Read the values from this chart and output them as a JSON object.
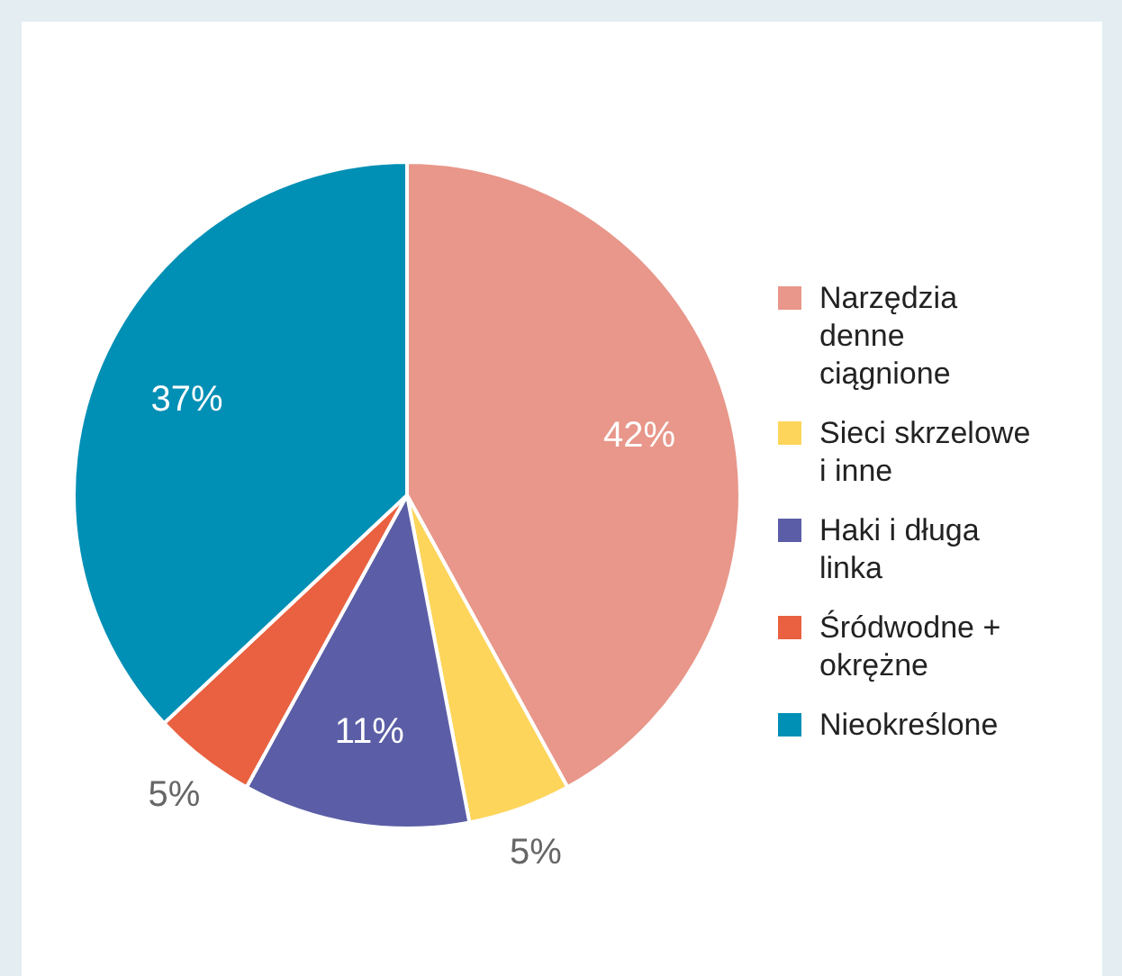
{
  "chart_data": {
    "type": "pie",
    "categories": [
      "Narzędzia denne ciągnione",
      "Sieci skrzelowe i inne",
      "Haki i długa linka",
      "Śródwodne + okrężne",
      "Nieokreślone"
    ],
    "values": [
      42,
      5,
      11,
      5,
      37
    ],
    "value_labels": [
      "42%",
      "5%",
      "11%",
      "5%",
      "37%"
    ],
    "colors": [
      "#e8978a",
      "#fdd55b",
      "#5b5ea6",
      "#e96140",
      "#008fb5"
    ],
    "legend": "right"
  }
}
